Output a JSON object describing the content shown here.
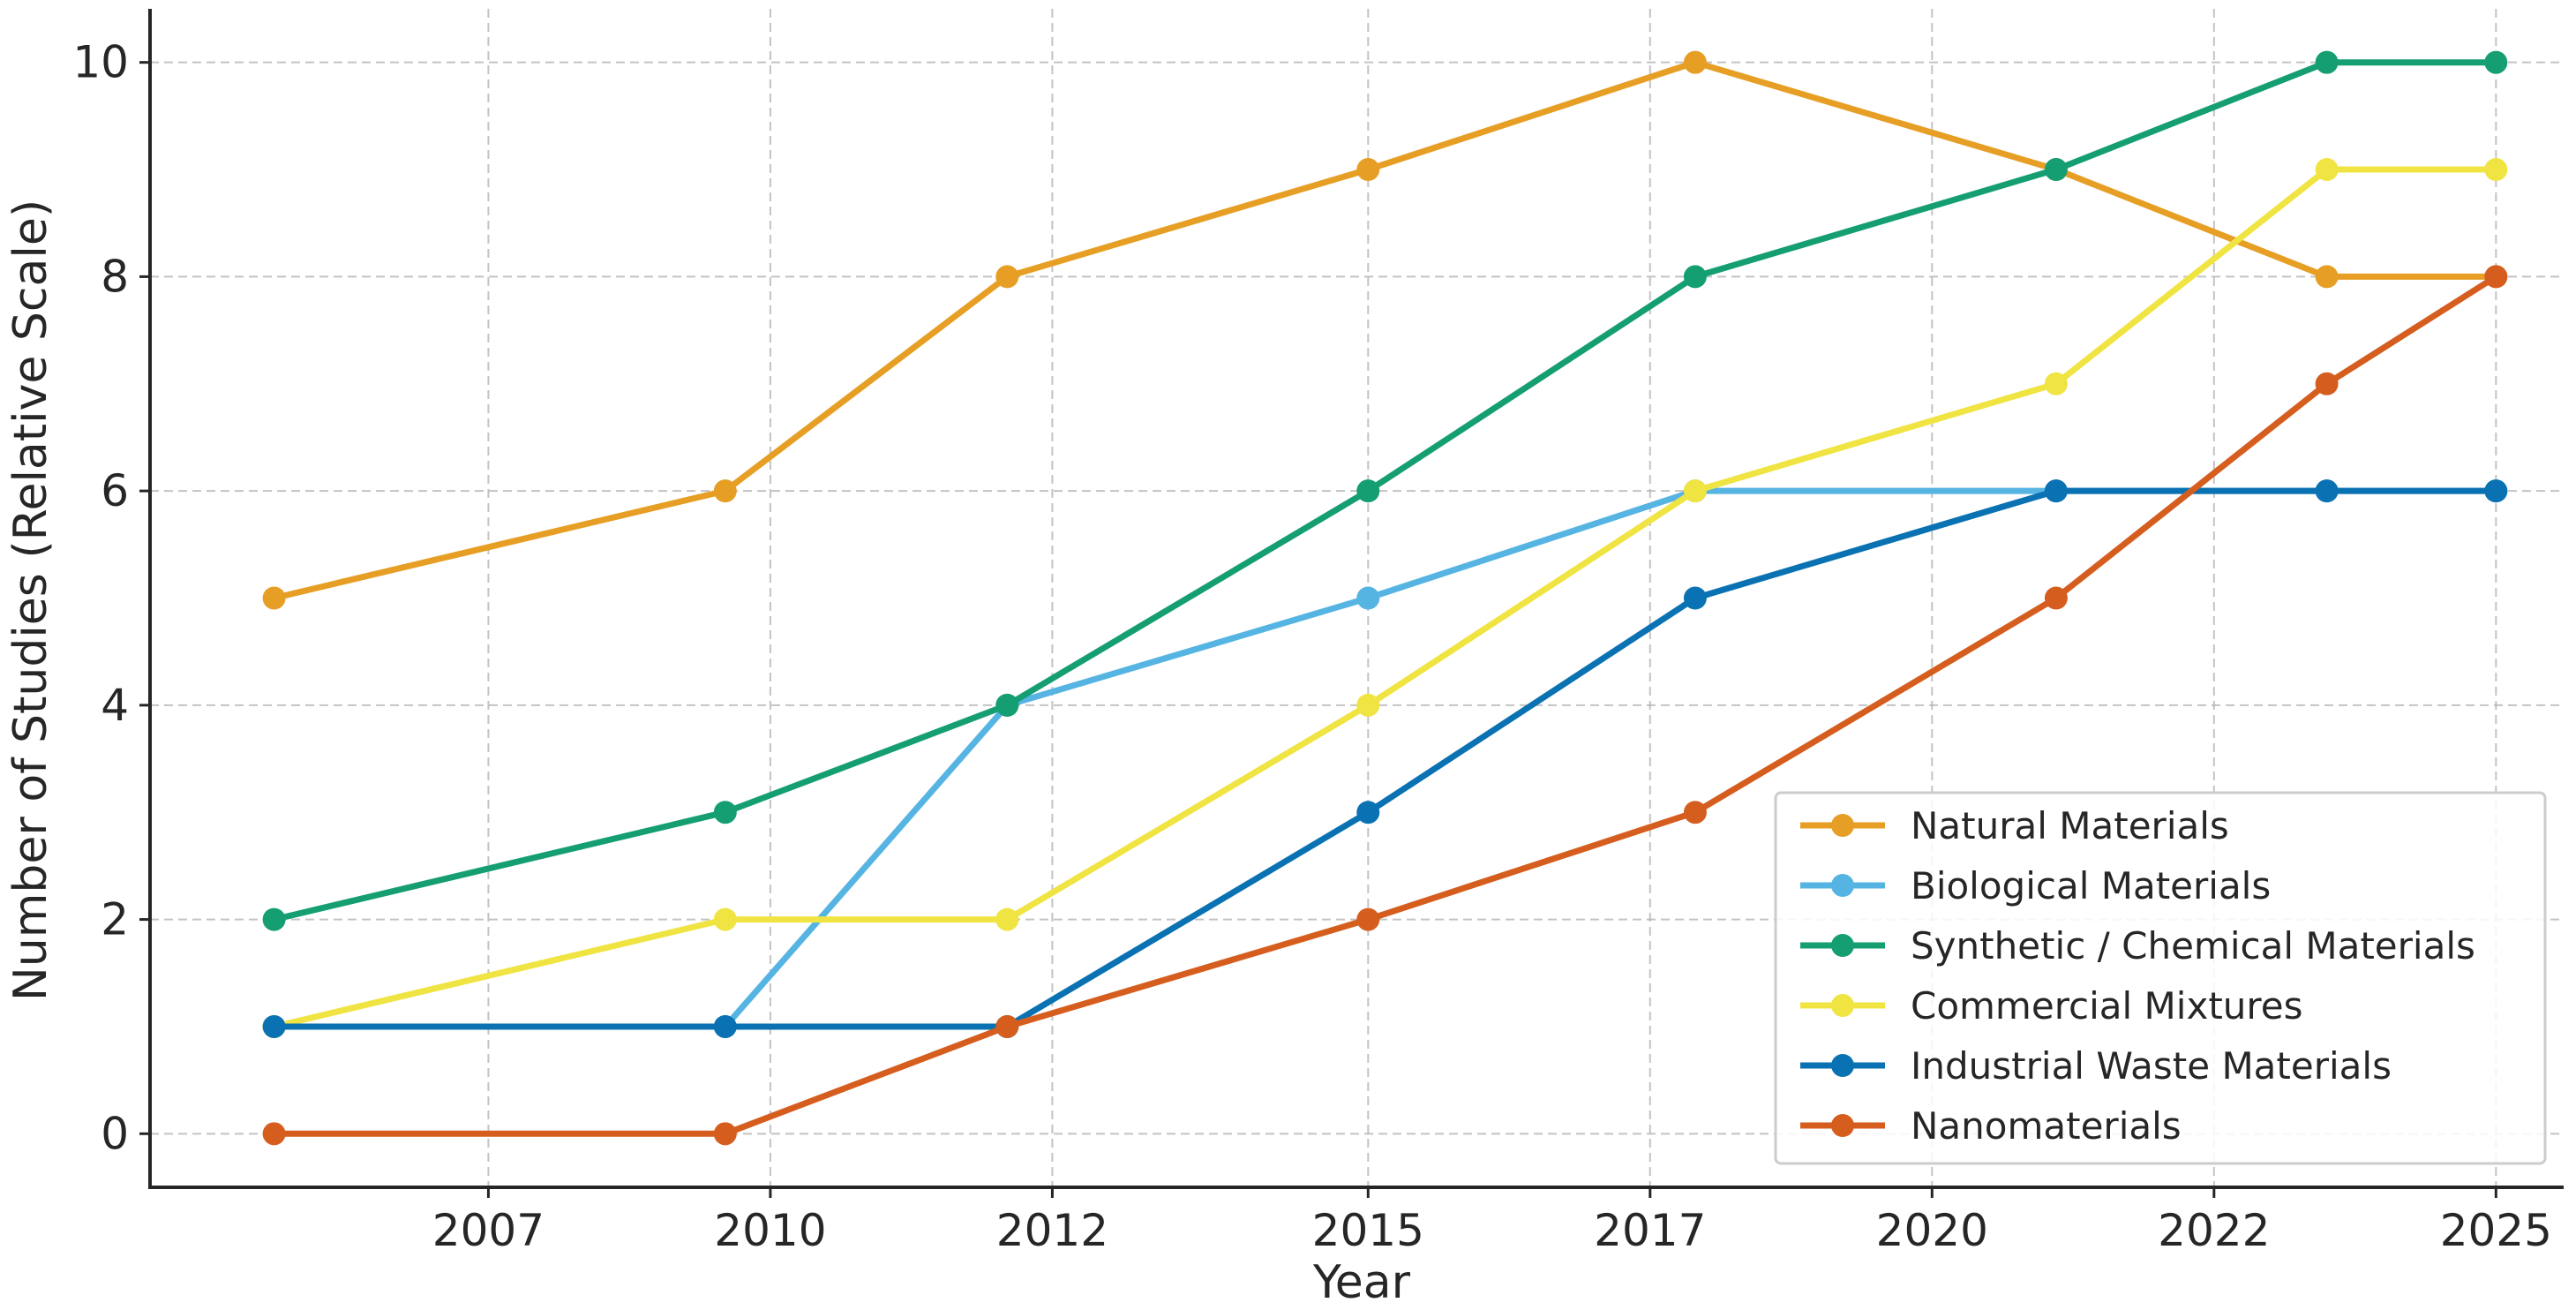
{
  "chart_data": {
    "type": "line",
    "title": "",
    "xlabel": "Year",
    "ylabel": "Number of Studies (Relative Scale)",
    "x": [
      2005.3,
      2009.3,
      2011.8,
      2015.0,
      2017.9,
      2021.1,
      2023.5,
      2025.0
    ],
    "xlim": [
      2004.2,
      2025.6
    ],
    "ylim": [
      -0.5,
      10.5
    ],
    "x_ticks": [
      2007.2,
      2009.7,
      2012.2,
      2015.0,
      2017.5,
      2020.0,
      2022.5,
      2025.0
    ],
    "x_tick_labels": [
      "2007",
      "2010",
      "2012",
      "2015",
      "2017",
      "2020",
      "2022",
      "2025"
    ],
    "y_ticks": [
      0,
      2,
      4,
      6,
      8,
      10
    ],
    "y_tick_labels": [
      "0",
      "2",
      "4",
      "6",
      "8",
      "10"
    ],
    "grid": true,
    "legend_position": "bottom-right",
    "series": [
      {
        "name": "Natural Materials",
        "color": "#E69F24",
        "values": [
          5,
          6,
          8,
          9,
          10,
          9,
          8,
          8
        ]
      },
      {
        "name": "Biological Materials",
        "color": "#56B4E3",
        "values": [
          1,
          1,
          4,
          5,
          6,
          6,
          6,
          6
        ]
      },
      {
        "name": "Synthetic / Chemical Materials",
        "color": "#169E73",
        "values": [
          2,
          3,
          4,
          6,
          8,
          9,
          10,
          10
        ]
      },
      {
        "name": "Commercial Mixtures",
        "color": "#F0E443",
        "values": [
          1,
          2,
          2,
          4,
          6,
          7,
          9,
          9
        ]
      },
      {
        "name": "Industrial Waste Materials",
        "color": "#0A72B2",
        "values": [
          1,
          1,
          1,
          3,
          5,
          6,
          6,
          6
        ]
      },
      {
        "name": "Nanomaterials",
        "color": "#D55E1F",
        "values": [
          0,
          0,
          1,
          2,
          3,
          5,
          7,
          8
        ]
      }
    ]
  }
}
